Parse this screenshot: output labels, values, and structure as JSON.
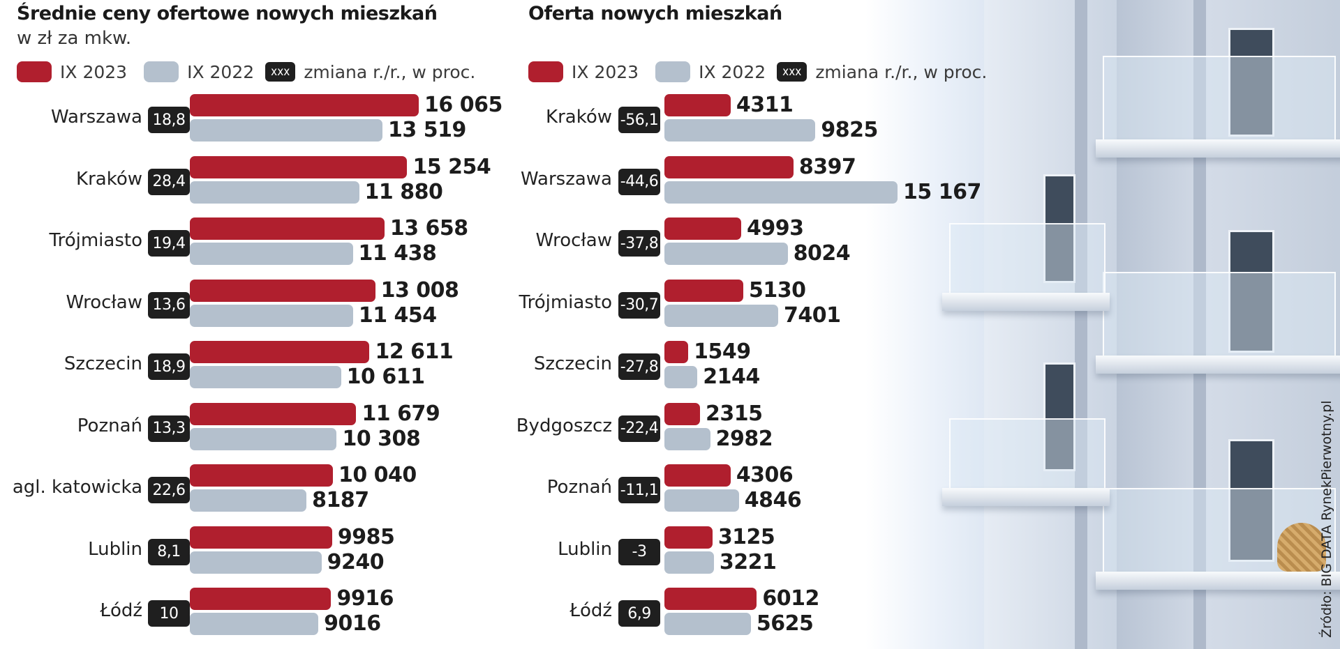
{
  "legend": {
    "current": "IX 2023",
    "previous": "IX 2022",
    "change_badge": "xxx",
    "change_label": "zmiana r./r., w proc."
  },
  "colors": {
    "current": "#b01f2e",
    "previous": "#b4c0cd",
    "badge": "#1f1f1f"
  },
  "source": "Źródło: BIG DATA RynekPierwotny.pl",
  "chart_data": [
    {
      "type": "bar",
      "orientation": "horizontal",
      "title": "Średnie ceny ofertowe nowych mieszkań",
      "subtitle": "w zł za mkw.",
      "categories": [
        "Warszawa",
        "Kraków",
        "Trójmiasto",
        "Wrocław",
        "Szczecin",
        "Poznań",
        "agl. katowicka",
        "Lublin",
        "Łódź"
      ],
      "change": [
        "18,8",
        "28,4",
        "19,4",
        "13,6",
        "18,9",
        "13,3",
        "22,6",
        "8,1",
        "10"
      ],
      "series": [
        {
          "name": "IX 2023",
          "values": [
            16065,
            15254,
            13658,
            13008,
            12611,
            11679,
            10040,
            9985,
            9916
          ],
          "labels": [
            "16 065",
            "15 254",
            "13 658",
            "13 008",
            "12 611",
            "11 679",
            "10 040",
            "9985",
            "9916"
          ]
        },
        {
          "name": "IX 2022",
          "values": [
            13519,
            11880,
            11438,
            11454,
            10611,
            10308,
            8187,
            9240,
            9016
          ],
          "labels": [
            "13 519",
            "11 880",
            "11 438",
            "11 454",
            "10 611",
            "10 308",
            "8187",
            "9240",
            "9016"
          ]
        }
      ],
      "xlim": [
        0,
        16065
      ],
      "grid": false,
      "legend": "top"
    },
    {
      "type": "bar",
      "orientation": "horizontal",
      "title": "Oferta nowych mieszkań",
      "categories": [
        "Kraków",
        "Warszawa",
        "Wrocław",
        "Trójmiasto",
        "Szczecin",
        "Bydgoszcz",
        "Poznań",
        "Lublin",
        "Łódź"
      ],
      "change": [
        "-56,1",
        "-44,6",
        "-37,8",
        "-30,7",
        "-27,8",
        "-22,4",
        "-11,1",
        "-3",
        "6,9"
      ],
      "series": [
        {
          "name": "IX 2023",
          "values": [
            4311,
            8397,
            4993,
            5130,
            1549,
            2315,
            4306,
            3125,
            6012
          ],
          "labels": [
            "4311",
            "8397",
            "4993",
            "5130",
            "1549",
            "2315",
            "4306",
            "3125",
            "6012"
          ]
        },
        {
          "name": "IX 2022",
          "values": [
            9825,
            15167,
            8024,
            7401,
            2144,
            2982,
            4846,
            3221,
            5625
          ],
          "labels": [
            "9825",
            "15 167",
            "8024",
            "7401",
            "2144",
            "2982",
            "4846",
            "3221",
            "5625"
          ]
        }
      ],
      "xlim": [
        0,
        15167
      ],
      "grid": false,
      "legend": "top"
    }
  ]
}
